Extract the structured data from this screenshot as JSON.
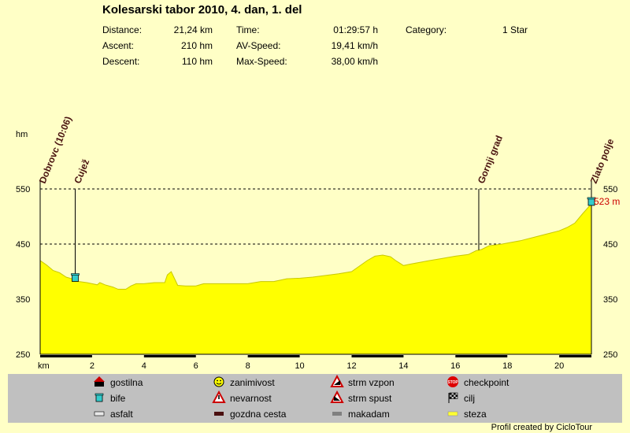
{
  "title": "Kolesarski tabor 2010, 4. dan, 1. del",
  "stats": {
    "distance_label": "Distance:",
    "distance_value": "21,24 km",
    "ascent_label": "Ascent:",
    "ascent_value": "210 hm",
    "descent_label": "Descent:",
    "descent_value": "110 hm",
    "time_label": "Time:",
    "time_value": "01:29:57 h",
    "avspeed_label": "AV-Speed:",
    "avspeed_value": "19,41 km/h",
    "maxspeed_label": "Max-Speed:",
    "maxspeed_value": "38,00 km/h",
    "category_label": "Category:",
    "category_value": "1 Star"
  },
  "colors": {
    "background": "#ffffc6",
    "profile_fill": "#ffff00",
    "legend_bg": "#c0c0c0",
    "end_label": "#cc0000"
  },
  "chart_data": {
    "type": "area",
    "xlabel": "km",
    "ylabel": "hm",
    "xlim": [
      0,
      21.24
    ],
    "ylim": [
      250,
      550
    ],
    "x_ticks": [
      2,
      4,
      6,
      8,
      10,
      12,
      14,
      16,
      18,
      20
    ],
    "y_ticks": [
      250,
      350,
      450,
      550
    ],
    "grid": "dashed horizontal at 350, 450, 550",
    "end_value_label": "523 m",
    "profile": [
      [
        0,
        420
      ],
      [
        0.25,
        412
      ],
      [
        0.5,
        402
      ],
      [
        0.75,
        398
      ],
      [
        1.0,
        390
      ],
      [
        1.3,
        386
      ],
      [
        1.5,
        382
      ],
      [
        1.8,
        380
      ],
      [
        2.0,
        378
      ],
      [
        2.2,
        376
      ],
      [
        2.3,
        380
      ],
      [
        2.5,
        376
      ],
      [
        2.8,
        372
      ],
      [
        3.0,
        368
      ],
      [
        3.3,
        368
      ],
      [
        3.5,
        374
      ],
      [
        3.7,
        378
      ],
      [
        4.0,
        378
      ],
      [
        4.4,
        380
      ],
      [
        4.8,
        380
      ],
      [
        4.9,
        394
      ],
      [
        5.05,
        400
      ],
      [
        5.15,
        390
      ],
      [
        5.3,
        375
      ],
      [
        5.6,
        374
      ],
      [
        6.0,
        374
      ],
      [
        6.3,
        378
      ],
      [
        7.0,
        378
      ],
      [
        8.0,
        378
      ],
      [
        8.5,
        382
      ],
      [
        9.0,
        382
      ],
      [
        9.5,
        387
      ],
      [
        10.0,
        388
      ],
      [
        10.5,
        390
      ],
      [
        11.0,
        393
      ],
      [
        11.5,
        396
      ],
      [
        12.0,
        400
      ],
      [
        12.3,
        410
      ],
      [
        12.6,
        420
      ],
      [
        12.9,
        428
      ],
      [
        13.2,
        430
      ],
      [
        13.5,
        427
      ],
      [
        13.7,
        420
      ],
      [
        14.0,
        411
      ],
      [
        14.3,
        414
      ],
      [
        15.0,
        420
      ],
      [
        15.5,
        424
      ],
      [
        16.0,
        428
      ],
      [
        16.5,
        431
      ],
      [
        16.8,
        438
      ],
      [
        17.0,
        440
      ],
      [
        17.3,
        447
      ],
      [
        17.8,
        450
      ],
      [
        18.5,
        456
      ],
      [
        19.0,
        462
      ],
      [
        19.5,
        468
      ],
      [
        20.0,
        474
      ],
      [
        20.3,
        480
      ],
      [
        20.6,
        488
      ],
      [
        20.9,
        505
      ],
      [
        21.24,
        523
      ]
    ],
    "road_segments": [
      [
        0,
        2
      ],
      [
        4,
        6
      ],
      [
        8,
        10
      ],
      [
        12,
        14
      ],
      [
        16,
        18
      ],
      [
        20,
        21.24
      ]
    ],
    "waypoints": [
      {
        "name": "Dobrovc (10:06)",
        "km": 0,
        "line": false
      },
      {
        "name": "Cujež",
        "km": 1.35,
        "line": true,
        "icon": "bife"
      },
      {
        "name": "Gornji grad",
        "km": 16.9,
        "line": true
      },
      {
        "name": "Zlato polje",
        "km": 21.24,
        "line": false,
        "icon": "bife"
      }
    ]
  },
  "legend": [
    {
      "icon": "gostilna-icon",
      "label": "gostilna"
    },
    {
      "icon": "smiley-icon",
      "label": "zanimivost"
    },
    {
      "icon": "steep-up-icon",
      "label": "strm vzpon"
    },
    {
      "icon": "stop-icon",
      "label": "checkpoint"
    },
    {
      "icon": "cup-icon",
      "label": "bife"
    },
    {
      "icon": "warning-icon",
      "label": "nevarnost"
    },
    {
      "icon": "steep-down-icon",
      "label": "strm spust"
    },
    {
      "icon": "checkered-flag-icon",
      "label": "cilj"
    },
    {
      "icon": "asphalt-swatch-icon",
      "label": "asfalt"
    },
    {
      "icon": "forest-road-swatch-icon",
      "label": "gozdna cesta"
    },
    {
      "icon": "gravel-swatch-icon",
      "label": "makadam"
    },
    {
      "icon": "trail-swatch-icon",
      "label": "steza"
    }
  ],
  "credit": "Profil created by CicloTour"
}
